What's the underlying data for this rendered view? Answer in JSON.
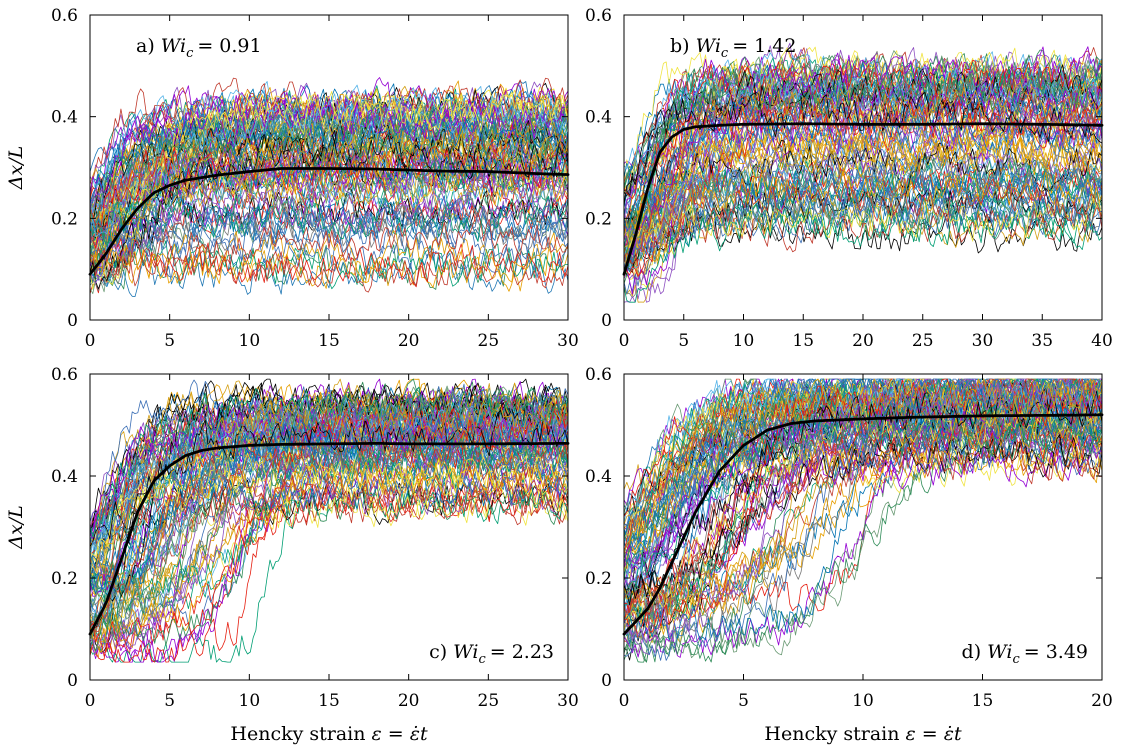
{
  "chart_data": [
    {
      "type": "line",
      "panel": "a",
      "label": "a) Wi_c = 0.91",
      "label_prefix": "a) ",
      "wi_symbol": "Wi",
      "wi_subscript": "c",
      "wi_value": "= 0.91",
      "label_position": "top-left",
      "xlabel": "",
      "ylabel": "Δx/L",
      "xlim": [
        0,
        30
      ],
      "ylim": [
        0,
        0.6
      ],
      "xticks": [
        "0",
        "5",
        "10",
        "15",
        "20",
        "25",
        "30"
      ],
      "yticks": [
        "0",
        "0.2",
        "0.4",
        "0.6"
      ],
      "ensemble": {
        "n_traces": 110,
        "initial_range": [
          0.04,
          0.2
        ],
        "final_range": [
          0.06,
          0.43
        ],
        "rise_strain_range": [
          0.3,
          4
        ]
      },
      "mean": {
        "x": [
          0,
          1,
          2,
          3,
          4,
          5,
          6,
          7,
          8,
          10,
          12,
          15,
          18,
          20,
          22,
          25,
          28,
          30
        ],
        "y": [
          0.09,
          0.13,
          0.18,
          0.22,
          0.25,
          0.265,
          0.275,
          0.28,
          0.285,
          0.292,
          0.298,
          0.298,
          0.297,
          0.295,
          0.293,
          0.292,
          0.288,
          0.286
        ]
      }
    },
    {
      "type": "line",
      "panel": "b",
      "label": "b) Wi_c = 1.42",
      "label_prefix": "b) ",
      "wi_symbol": "Wi",
      "wi_subscript": "c",
      "wi_value": "= 1.42",
      "label_position": "top-center",
      "xlabel": "",
      "ylabel": "",
      "xlim": [
        0,
        40
      ],
      "ylim": [
        0,
        0.6
      ],
      "xticks": [
        "0",
        "5",
        "10",
        "15",
        "20",
        "25",
        "30",
        "35",
        "40"
      ],
      "yticks": [
        "0",
        "0.2",
        "0.4",
        "0.6"
      ],
      "ensemble": {
        "n_traces": 110,
        "initial_range": [
          0.04,
          0.18
        ],
        "final_range": [
          0.16,
          0.5
        ],
        "rise_strain_range": [
          0.5,
          6
        ]
      },
      "mean": {
        "x": [
          0,
          1,
          2,
          3,
          4,
          5,
          6,
          8,
          10,
          15,
          20,
          25,
          30,
          35,
          40
        ],
        "y": [
          0.09,
          0.17,
          0.26,
          0.33,
          0.36,
          0.375,
          0.38,
          0.383,
          0.385,
          0.386,
          0.385,
          0.385,
          0.386,
          0.385,
          0.383
        ]
      }
    },
    {
      "type": "line",
      "panel": "c",
      "label": "c) Wi_c = 2.23",
      "label_prefix": "c) ",
      "wi_symbol": "Wi",
      "wi_subscript": "c",
      "wi_value": "= 2.23",
      "label_position": "bottom-right",
      "xlabel": "Hencky strain ε = ε̇t",
      "xlabel_prefix": "Hencky strain ",
      "xlabel_math": "ε = ε̇t",
      "ylabel": "Δx/L",
      "xlim": [
        0,
        30
      ],
      "ylim": [
        0,
        0.6
      ],
      "xticks": [
        "0",
        "5",
        "10",
        "15",
        "20",
        "25",
        "30"
      ],
      "yticks": [
        "0",
        "0.2",
        "0.4",
        "0.6"
      ],
      "ensemble": {
        "n_traces": 110,
        "initial_range": [
          0.04,
          0.2
        ],
        "final_range": [
          0.33,
          0.55
        ],
        "rise_strain_range": [
          0.3,
          12
        ]
      },
      "mean": {
        "x": [
          0,
          1,
          2,
          3,
          4,
          5,
          6,
          7,
          8,
          10,
          12,
          15,
          18,
          20,
          25,
          30
        ],
        "y": [
          0.09,
          0.15,
          0.24,
          0.33,
          0.39,
          0.42,
          0.44,
          0.45,
          0.455,
          0.46,
          0.462,
          0.463,
          0.464,
          0.463,
          0.463,
          0.464
        ]
      }
    },
    {
      "type": "line",
      "panel": "d",
      "label": "d) Wi_c = 3.49",
      "label_prefix": "d) ",
      "wi_symbol": "Wi",
      "wi_subscript": "c",
      "wi_value": "= 3.49",
      "label_position": "bottom-right",
      "xlabel": "Hencky strain ε = ε̇t",
      "xlabel_prefix": "Hencky strain ",
      "xlabel_math": "ε = ε̇t",
      "ylabel": "",
      "xlim": [
        0,
        20
      ],
      "ylim": [
        0,
        0.6
      ],
      "xticks": [
        "0",
        "5",
        "10",
        "15",
        "20"
      ],
      "yticks": [
        "0",
        "0.2",
        "0.4",
        "0.6"
      ],
      "ensemble": {
        "n_traces": 110,
        "initial_range": [
          0.04,
          0.18
        ],
        "final_range": [
          0.42,
          0.58
        ],
        "rise_strain_range": [
          0.3,
          11
        ]
      },
      "mean": {
        "x": [
          0,
          1,
          1.5,
          2,
          2.5,
          3,
          3.5,
          4,
          5,
          6,
          7,
          8,
          10,
          12,
          15,
          18,
          20
        ],
        "y": [
          0.09,
          0.14,
          0.18,
          0.23,
          0.28,
          0.33,
          0.37,
          0.41,
          0.46,
          0.49,
          0.503,
          0.508,
          0.512,
          0.515,
          0.518,
          0.519,
          0.52
        ]
      }
    }
  ],
  "colors": [
    "#9400d3",
    "#009e73",
    "#56b4e9",
    "#e69f00",
    "#f0e442",
    "#0072b2",
    "#e51e10",
    "#000000",
    "#6a9a74",
    "#3b6fb6",
    "#d4a017",
    "#8e4fc1",
    "#c0392b",
    "#2e8b57",
    "#1f77b4",
    "#7a7a7a"
  ],
  "mean_color": "#000000"
}
